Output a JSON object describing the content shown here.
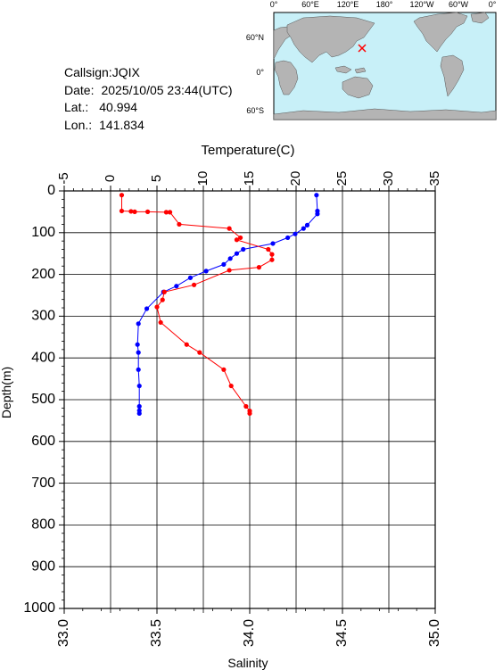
{
  "info": {
    "callsign_label": "Callsign:",
    "callsign": "JQIX",
    "date_label": "Date:",
    "date": "2025/10/05 23:44(UTC)",
    "lat_label": "Lat.:",
    "lat": "40.994",
    "lon_label": "Lon.:",
    "lon": "141.834"
  },
  "map": {
    "lon_ticks": [
      "0°",
      "60°E",
      "120°E",
      "180°",
      "120°W",
      "60°W",
      "0°"
    ],
    "lat_ticks": [
      "60°N",
      "0°",
      "60°S"
    ],
    "ocean_color": "#c8f0f8",
    "land_color": "#b4b4b4",
    "marker": "red-cross"
  },
  "chart_data": {
    "type": "line",
    "top_axis_title": "Temperature(C)",
    "left_axis_title": "Depth(m)",
    "bottom_axis_title": "Salinity",
    "temperature_ticks": [
      "-5",
      "0",
      "5",
      "10",
      "15",
      "20",
      "25",
      "30",
      "35"
    ],
    "depth_ticks": [
      "0",
      "100",
      "200",
      "300",
      "400",
      "500",
      "600",
      "700",
      "800",
      "900",
      "1000"
    ],
    "salinity_ticks": [
      "33.0",
      "33.5",
      "34.0",
      "34.5",
      "35.0"
    ],
    "temperature_range": [
      -5,
      35
    ],
    "depth_range": [
      0,
      1000
    ],
    "salinity_range": [
      33.0,
      35.0
    ],
    "grid": true,
    "series": [
      {
        "axis": "temperature",
        "color": "#0000ff",
        "points": [
          [
            22.2,
            10
          ],
          [
            22.3,
            48
          ],
          [
            22.3,
            55
          ],
          [
            21.2,
            82
          ],
          [
            20.8,
            90
          ],
          [
            19.9,
            103
          ],
          [
            19.1,
            112
          ],
          [
            17.5,
            126
          ],
          [
            14.3,
            140
          ],
          [
            13.6,
            150
          ],
          [
            12.9,
            162
          ],
          [
            12.2,
            176
          ],
          [
            10.3,
            192
          ],
          [
            8.6,
            208
          ],
          [
            7.1,
            228
          ],
          [
            5.7,
            242
          ],
          [
            3.9,
            282
          ],
          [
            3.0,
            318
          ],
          [
            2.9,
            368
          ],
          [
            3.0,
            387
          ],
          [
            3.0,
            428
          ],
          [
            3.1,
            467
          ],
          [
            3.1,
            516
          ],
          [
            3.1,
            526
          ],
          [
            3.1,
            533
          ]
        ]
      },
      {
        "axis": "salinity",
        "color": "#ff0000",
        "points": [
          [
            33.31,
            10
          ],
          [
            33.31,
            48
          ],
          [
            33.36,
            49
          ],
          [
            33.38,
            50
          ],
          [
            33.45,
            50
          ],
          [
            33.55,
            51
          ],
          [
            33.57,
            51
          ],
          [
            33.62,
            80
          ],
          [
            33.89,
            90
          ],
          [
            33.95,
            112
          ],
          [
            33.93,
            117
          ],
          [
            34.1,
            140
          ],
          [
            34.12,
            152
          ],
          [
            34.12,
            165
          ],
          [
            34.05,
            183
          ],
          [
            33.89,
            190
          ],
          [
            33.7,
            225
          ],
          [
            33.54,
            242
          ],
          [
            33.53,
            261
          ],
          [
            33.5,
            278
          ],
          [
            33.52,
            315
          ],
          [
            33.66,
            368
          ],
          [
            33.73,
            387
          ],
          [
            33.86,
            428
          ],
          [
            33.9,
            467
          ],
          [
            33.98,
            516
          ],
          [
            34.0,
            527
          ],
          [
            34.0,
            533
          ]
        ]
      }
    ]
  }
}
